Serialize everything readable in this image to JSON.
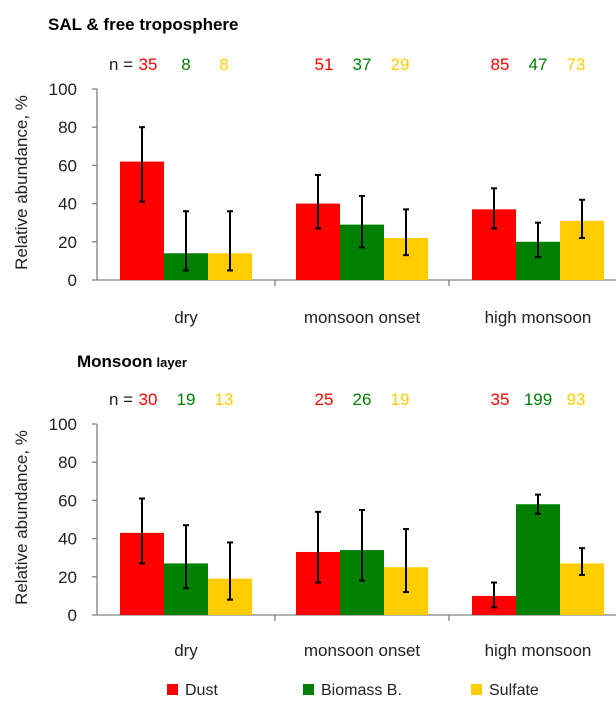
{
  "colors": {
    "Dust": "#ff0000",
    "Biomass B.": "#008000",
    "Sulfate": "#ffcc00",
    "axis": "#808080",
    "errorbar": "#000000"
  },
  "legend": [
    "Dust",
    "Biomass B.",
    "Sulfate"
  ],
  "chart_data": [
    {
      "type": "bar",
      "title": "SAL & free troposphere",
      "title_small": "",
      "ylabel": "Relative abundance, %",
      "ylim": [
        0,
        100
      ],
      "yticks": [
        "0",
        "20",
        "40",
        "60",
        "80",
        "100"
      ],
      "categories": [
        "dry",
        "monsoon onset",
        "high monsoon"
      ],
      "n_prefix": "n =",
      "series": [
        {
          "name": "Dust",
          "values": [
            62,
            40,
            37
          ],
          "err_low": [
            41,
            27,
            27
          ],
          "err_high": [
            80,
            55,
            48
          ],
          "n": [
            "35",
            "51",
            "85"
          ]
        },
        {
          "name": "Biomass B.",
          "values": [
            14,
            29,
            20
          ],
          "err_low": [
            5,
            17,
            12
          ],
          "err_high": [
            36,
            44,
            30
          ],
          "n": [
            "8",
            "37",
            "47"
          ]
        },
        {
          "name": "Sulfate",
          "values": [
            14,
            22,
            31
          ],
          "err_low": [
            5,
            13,
            22
          ],
          "err_high": [
            36,
            37,
            42
          ],
          "n": [
            "8",
            "29",
            "73"
          ]
        }
      ]
    },
    {
      "type": "bar",
      "title": "Monsoon",
      "title_small": "layer",
      "ylabel": "Relative abundance, %",
      "ylim": [
        0,
        100
      ],
      "yticks": [
        "0",
        "20",
        "40",
        "60",
        "80",
        "100"
      ],
      "categories": [
        "dry",
        "monsoon onset",
        "high monsoon"
      ],
      "n_prefix": "n =",
      "series": [
        {
          "name": "Dust",
          "values": [
            43,
            33,
            10
          ],
          "err_low": [
            27,
            17,
            4
          ],
          "err_high": [
            61,
            54,
            17
          ],
          "n": [
            "30",
            "25",
            "35"
          ]
        },
        {
          "name": "Biomass B.",
          "values": [
            27,
            34,
            58
          ],
          "err_low": [
            14,
            18,
            53
          ],
          "err_high": [
            47,
            55,
            63
          ],
          "n": [
            "19",
            "26",
            "199"
          ]
        },
        {
          "name": "Sulfate",
          "values": [
            19,
            25,
            27
          ],
          "err_low": [
            8,
            12,
            21
          ],
          "err_high": [
            38,
            45,
            35
          ],
          "n": [
            "13",
            "19",
            "93"
          ]
        }
      ]
    }
  ]
}
